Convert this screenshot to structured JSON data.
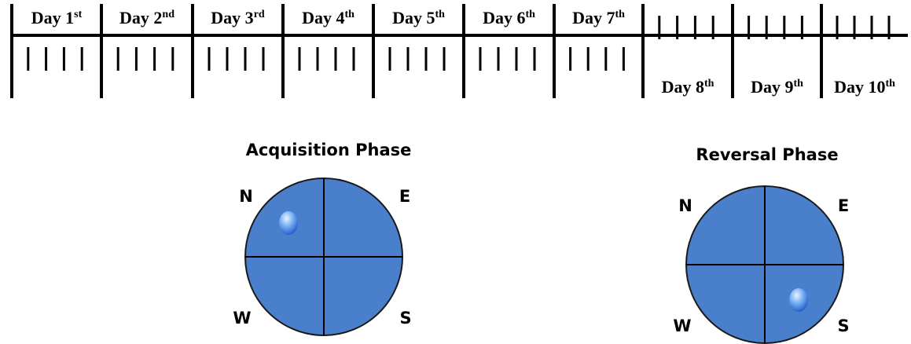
{
  "timeline": {
    "days": [
      {
        "label": "Day 1",
        "sup": "st"
      },
      {
        "label": "Day 2",
        "sup": "nd"
      },
      {
        "label": "Day 3",
        "sup": "rd"
      },
      {
        "label": "Day 4",
        "sup": "th"
      },
      {
        "label": "Day 5",
        "sup": "th"
      },
      {
        "label": "Day 6",
        "sup": "th"
      },
      {
        "label": "Day 7",
        "sup": "th"
      },
      {
        "label": "Day 8",
        "sup": "th"
      },
      {
        "label": "Day 9",
        "sup": "th"
      },
      {
        "label": "Day 10",
        "sup": "th"
      }
    ]
  },
  "phases": [
    {
      "title": "Acquisition Phase",
      "north": "N",
      "east": "E",
      "west": "W",
      "south": "S"
    },
    {
      "title": "Reversal Phase",
      "north": "N",
      "east": "E",
      "west": "W",
      "south": "S"
    }
  ]
}
